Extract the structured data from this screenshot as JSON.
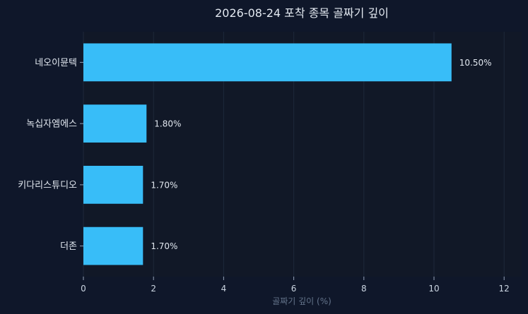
{
  "chart_data": {
    "type": "bar",
    "orientation": "horizontal",
    "title": "2026-08-24 포착 종목 골짜기 깊이",
    "xlabel": "골짜기 깊이 (%)",
    "ylabel": "",
    "categories": [
      "네오이뮨텍",
      "녹십자엠에스",
      "키다리스튜디오",
      "더존"
    ],
    "values": [
      10.5,
      1.8,
      1.7,
      1.7
    ],
    "data_labels": [
      "10.50%",
      "1.80%",
      "1.70%",
      "1.70%"
    ],
    "xlim": [
      0,
      12.5
    ],
    "xticks": [
      0,
      2,
      4,
      6,
      8,
      10,
      12
    ],
    "grid": true,
    "colors": {
      "bar": "#38bdf8",
      "background": "#0f172a",
      "plot_background": "#111827"
    }
  }
}
